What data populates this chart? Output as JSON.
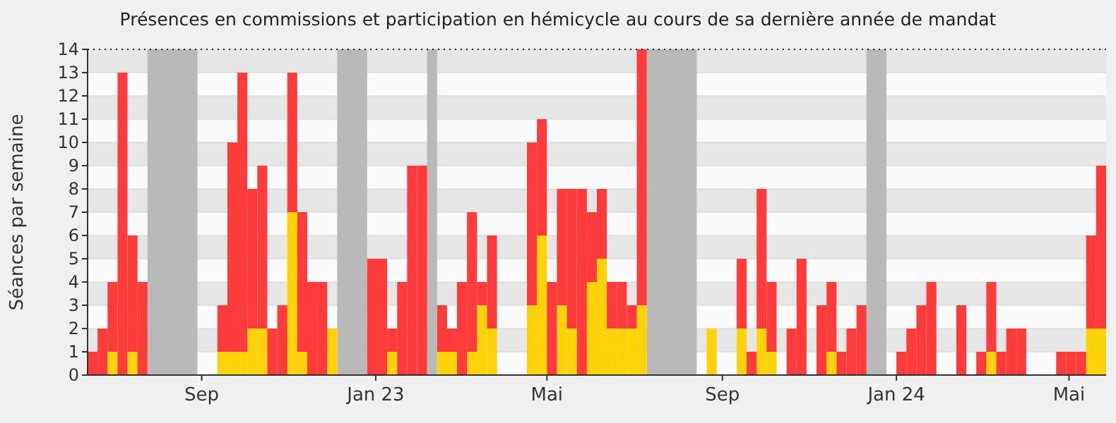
{
  "chart_data": {
    "type": "bar",
    "title": "Présences en commissions et participation en hémicycle au cours de sa dernière année de mandat",
    "ylabel": "Séances par semaine",
    "x": [
      "2022-06-13",
      "2022-06-20",
      "2022-06-27",
      "2022-07-04",
      "2022-07-11",
      "2022-07-18",
      "2022-07-25",
      "2022-08-01",
      "2022-08-08",
      "2022-08-15",
      "2022-08-22",
      "2022-08-29",
      "2022-09-05",
      "2022-09-12",
      "2022-09-19",
      "2022-09-26",
      "2022-10-03",
      "2022-10-10",
      "2022-10-17",
      "2022-10-24",
      "2022-10-31",
      "2022-11-07",
      "2022-11-14",
      "2022-11-21",
      "2022-11-28",
      "2022-12-05",
      "2022-12-12",
      "2022-12-19",
      "2022-12-26",
      "2023-01-02",
      "2023-01-09",
      "2023-01-16",
      "2023-01-23",
      "2023-01-30",
      "2023-02-06",
      "2023-02-13",
      "2023-02-20",
      "2023-02-27",
      "2023-03-06",
      "2023-03-13",
      "2023-03-20",
      "2023-03-27",
      "2023-04-03",
      "2023-04-10",
      "2023-04-17",
      "2023-04-24",
      "2023-05-01",
      "2023-05-08",
      "2023-05-15",
      "2023-05-22",
      "2023-05-29",
      "2023-06-05",
      "2023-06-12",
      "2023-06-19",
      "2023-06-26",
      "2023-07-03",
      "2023-07-10",
      "2023-07-17",
      "2023-07-24",
      "2023-07-31",
      "2023-08-07",
      "2023-08-14",
      "2023-08-21",
      "2023-08-28",
      "2023-09-04",
      "2023-09-11",
      "2023-09-18",
      "2023-09-25",
      "2023-10-02",
      "2023-10-09",
      "2023-10-16",
      "2023-10-23",
      "2023-10-30",
      "2023-11-06",
      "2023-11-13",
      "2023-11-20",
      "2023-11-27",
      "2023-12-04",
      "2023-12-11",
      "2023-12-18",
      "2023-12-25",
      "2024-01-01",
      "2024-01-08",
      "2024-01-15",
      "2024-01-22",
      "2024-01-29",
      "2024-02-05",
      "2024-02-12",
      "2024-02-19",
      "2024-02-26",
      "2024-03-04",
      "2024-03-11",
      "2024-03-18",
      "2024-03-25",
      "2024-04-01",
      "2024-04-08",
      "2024-04-15",
      "2024-04-22",
      "2024-04-29",
      "2024-05-06",
      "2024-05-13",
      "2024-05-20"
    ],
    "series": [
      {
        "color": "#ffd20a",
        "values": [
          0,
          0,
          1,
          0,
          1,
          0,
          0,
          0,
          0,
          0,
          0,
          0,
          0,
          1,
          1,
          1,
          2,
          2,
          0,
          0,
          7,
          1,
          0,
          0,
          2,
          0,
          0,
          0,
          0,
          0,
          1,
          0,
          0,
          0,
          0,
          1,
          1,
          0,
          1,
          3,
          2,
          0,
          0,
          0,
          3,
          6,
          0,
          3,
          2,
          0,
          4,
          5,
          2,
          2,
          2,
          3,
          0,
          0,
          0,
          0,
          0,
          0,
          2,
          0,
          0,
          2,
          0,
          2,
          1,
          0,
          0,
          0,
          0,
          0,
          1,
          0,
          0,
          0,
          0,
          0,
          0,
          0,
          0,
          0,
          0,
          0,
          0,
          0,
          0,
          0,
          1,
          0,
          0,
          0,
          0,
          0,
          0,
          0,
          0,
          0,
          2,
          2
        ]
      },
      {
        "color": "#ff3b3b",
        "values": [
          1,
          2,
          3,
          13,
          5,
          4,
          0,
          0,
          0,
          0,
          0,
          0,
          0,
          2,
          9,
          12,
          6,
          7,
          2,
          3,
          6,
          6,
          4,
          4,
          0,
          0,
          0,
          0,
          5,
          5,
          1,
          4,
          9,
          9,
          0,
          2,
          1,
          4,
          6,
          1,
          4,
          0,
          0,
          0,
          7,
          5,
          4,
          5,
          6,
          8,
          3,
          3,
          2,
          2,
          1,
          11,
          0,
          0,
          0,
          0,
          0,
          0,
          0,
          0,
          0,
          3,
          1,
          6,
          3,
          0,
          2,
          5,
          0,
          3,
          3,
          1,
          2,
          3,
          0,
          0,
          0,
          1,
          2,
          3,
          4,
          0,
          0,
          3,
          0,
          1,
          3,
          1,
          2,
          2,
          0,
          0,
          0,
          1,
          1,
          1,
          4,
          7
        ]
      }
    ],
    "stacked": true,
    "xlim": [
      "2022-06-13",
      "2024-05-27"
    ],
    "xticks": [
      {
        "value": "2022-09-01",
        "label": "Sep"
      },
      {
        "value": "2023-01-01",
        "label": "Jan 23"
      },
      {
        "value": "2023-05-01",
        "label": "Mai"
      },
      {
        "value": "2023-09-01",
        "label": "Sep"
      },
      {
        "value": "2024-01-01",
        "label": "Jan 24"
      },
      {
        "value": "2024-05-01",
        "label": "Mai"
      }
    ],
    "ylim": [
      0,
      14
    ],
    "yticks": [
      0,
      1,
      2,
      3,
      4,
      5,
      6,
      7,
      8,
      9,
      10,
      11,
      12,
      13,
      14
    ],
    "grid": "y",
    "bands": [
      {
        "axis": "x",
        "from": "2022-07-25",
        "to": "2022-08-29",
        "color": "#b9b9b9"
      },
      {
        "axis": "x",
        "from": "2022-12-05",
        "to": "2022-12-26",
        "color": "#b9b9b9"
      },
      {
        "axis": "x",
        "from": "2023-02-06",
        "to": "2023-02-13",
        "color": "#b9b9b9"
      },
      {
        "axis": "x",
        "from": "2023-07-10",
        "to": "2023-08-14",
        "color": "#b9b9b9"
      },
      {
        "axis": "x",
        "from": "2023-12-11",
        "to": "2023-12-25",
        "color": "#b9b9b9"
      }
    ]
  }
}
